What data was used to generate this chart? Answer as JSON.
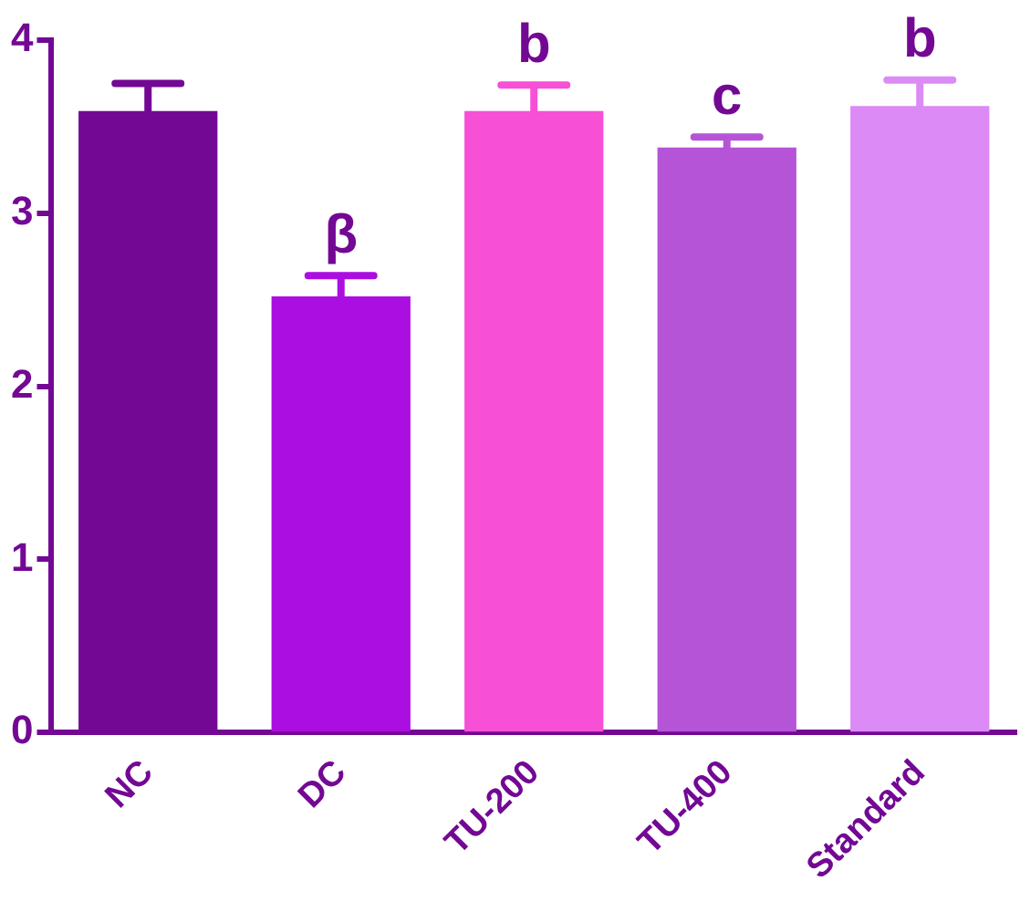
{
  "chart_data": {
    "type": "bar",
    "categories": [
      "NC",
      "DC",
      "TU-200",
      "TU-400",
      "Standard"
    ],
    "values": [
      3.59,
      2.52,
      3.59,
      3.38,
      3.62
    ],
    "errors": [
      [
        3.59,
        3.75
      ],
      [
        2.52,
        2.64
      ],
      [
        3.59,
        3.74
      ],
      [
        3.38,
        3.44
      ],
      [
        3.62,
        3.77
      ]
    ],
    "colors": [
      "#730894",
      "#ab0ee0",
      "#f74fd6",
      "#b554d6",
      "#dc8af5"
    ],
    "ylim": [
      0,
      4
    ],
    "yticks": [
      0,
      1,
      2,
      3,
      4
    ],
    "grid": false,
    "legend": false,
    "annotations": [
      {
        "text": "β",
        "x": "DC",
        "y": 2.52
      },
      {
        "text": "b",
        "x": "TU-200",
        "y": 3.59
      },
      {
        "text": "c",
        "x": "TU-400",
        "y": 3.38
      },
      {
        "text": "b",
        "x": "Standard",
        "y": 3.62
      }
    ]
  }
}
